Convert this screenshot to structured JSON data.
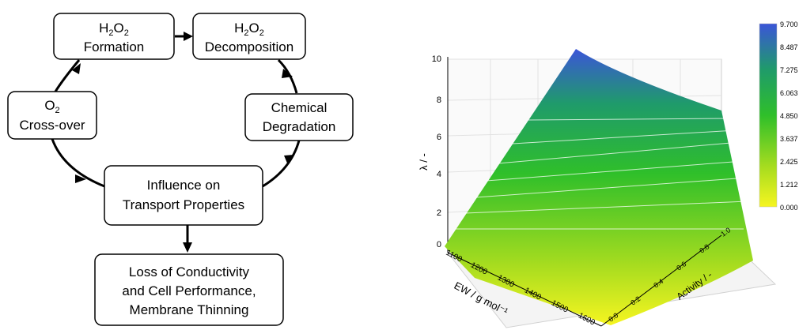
{
  "cycle": {
    "nodes": {
      "h2o2_formation": {
        "line1_main": "H",
        "line1_sub1": "2",
        "line1_mid": "O",
        "line1_sub2": "2",
        "line2": "Formation"
      },
      "h2o2_decomposition": {
        "line1_main": "H",
        "line1_sub1": "2",
        "line1_mid": "O",
        "line1_sub2": "2",
        "line2": "Decomposition"
      },
      "chemical_degradation": {
        "line1": "Chemical",
        "line2": "Degradation"
      },
      "influence": {
        "line1": "Influence on",
        "line2": "Transport Properties"
      },
      "o2_crossover": {
        "line1_main": "O",
        "line1_sub": "2",
        "line2": "Cross-over"
      },
      "loss": {
        "line1": "Loss of Conductivity",
        "line2": "and Cell Performance,",
        "line3": "Membrane Thinning"
      }
    }
  },
  "surface_plot": {
    "z_axis": {
      "label": "λ / -",
      "ticks": [
        "0",
        "2",
        "4",
        "6",
        "8",
        "10"
      ]
    },
    "x_axis": {
      "label": "EW / g mol⁻¹",
      "ticks": [
        "1100",
        "1200",
        "1300",
        "1400",
        "1500",
        "1600"
      ]
    },
    "y_axis": {
      "label": "Activity / -",
      "ticks": [
        "0.0",
        "0.2",
        "0.4",
        "0.6",
        "0.8",
        "1.0"
      ]
    },
    "colorbar": {
      "ticks": [
        "9.700",
        "8.487",
        "7.275",
        "6.063",
        "4.850",
        "3.637",
        "2.425",
        "1.212",
        "0.000"
      ],
      "colors": {
        "top": "#3b55d8",
        "upper": "#1f9b6a",
        "mid": "#2fbf2a",
        "lower": "#a6dc1f",
        "bottom": "#f6f520"
      }
    }
  }
}
